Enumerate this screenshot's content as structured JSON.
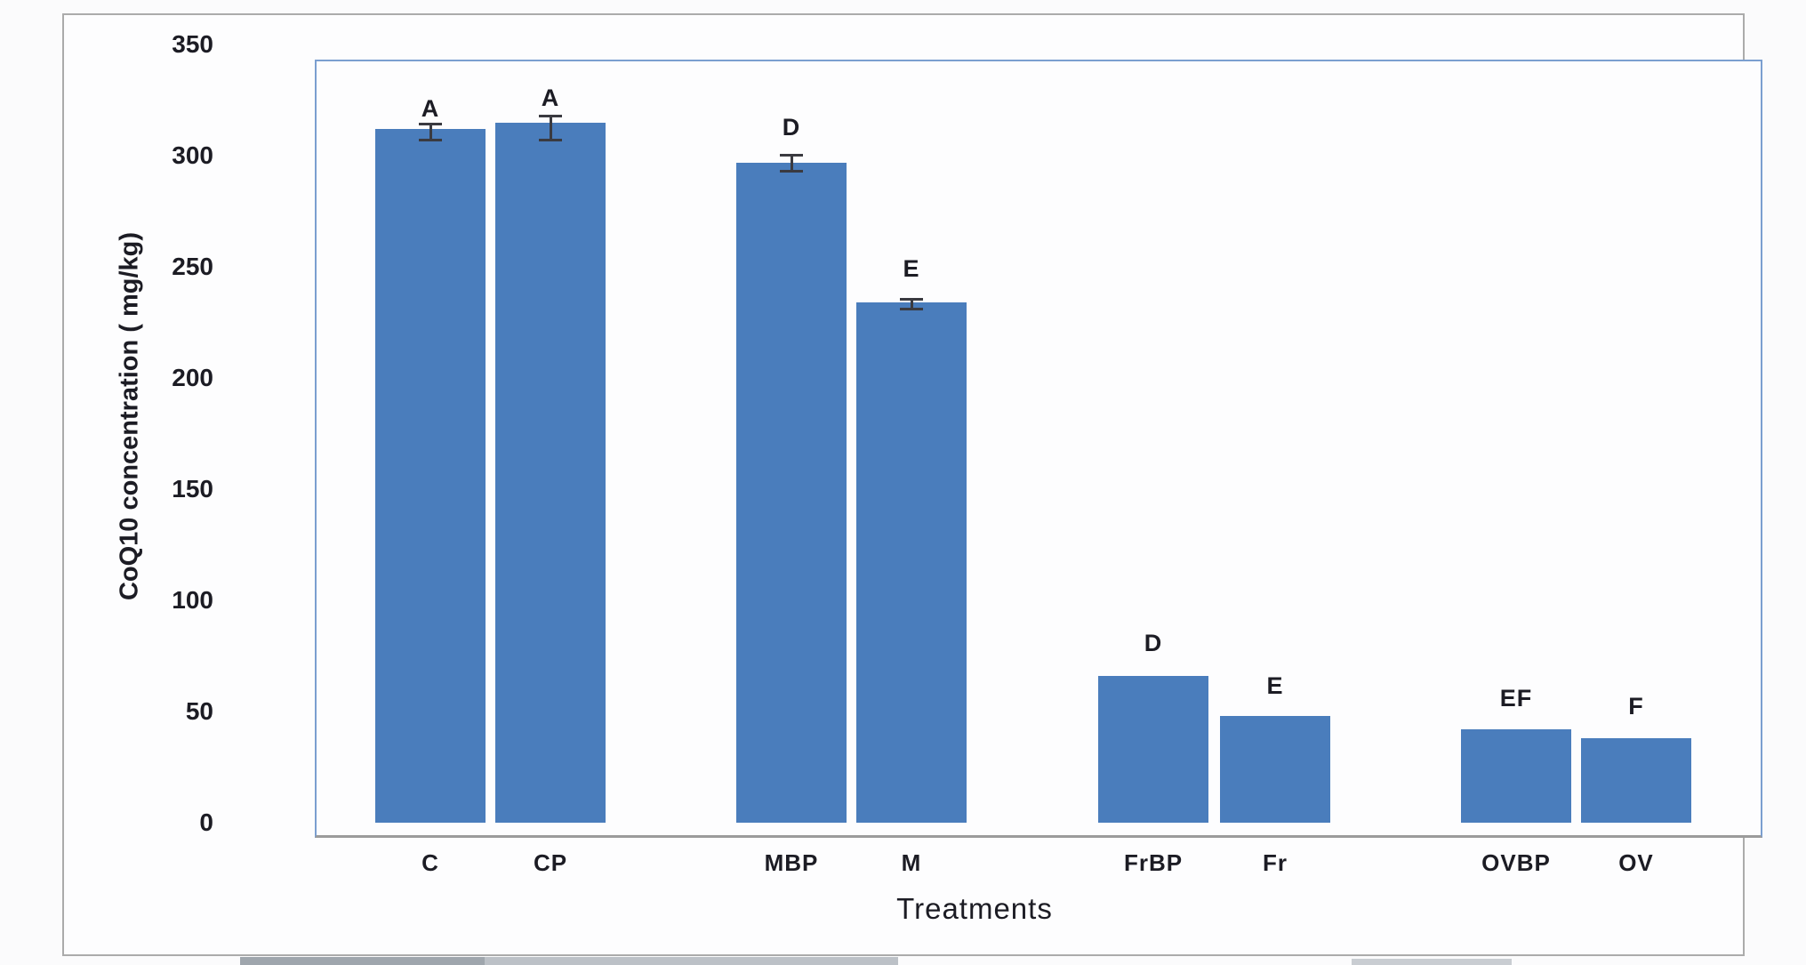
{
  "chart_data": {
    "type": "bar",
    "title": "",
    "xlabel": "Treatments",
    "ylabel": "CoQ10 concentration ( mg/kg)",
    "ylim": [
      0,
      350
    ],
    "yticks": [
      0,
      50,
      100,
      150,
      200,
      250,
      300,
      350
    ],
    "categories": [
      "C",
      "CP",
      "MBP",
      "M",
      "FrBP",
      "Fr",
      "OVBP",
      "OV"
    ],
    "values": [
      312,
      315,
      297,
      234,
      66,
      48,
      42,
      38
    ],
    "significance_letters": [
      "A",
      "A",
      "D",
      "E",
      "D",
      "E",
      "EF",
      "F"
    ],
    "error_bars": [
      {
        "plus": 2.5,
        "minus": 5
      },
      {
        "plus": 3,
        "minus": 8
      },
      {
        "plus": 3.5,
        "minus": 4
      },
      {
        "plus": 1.5,
        "minus": 3
      },
      null,
      null,
      null,
      null
    ],
    "grid": false,
    "legend": null
  },
  "colors": {
    "bar": "#4a7dbc",
    "plot_border": "#7b9fd0",
    "axis_line": "#9b9b9b",
    "text": "#1c1c24"
  }
}
